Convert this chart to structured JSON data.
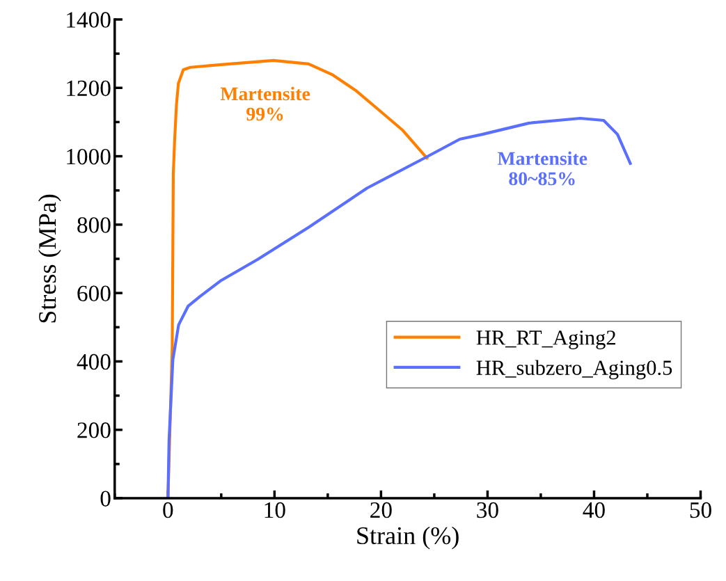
{
  "chart_data": {
    "type": "line",
    "xlabel": "Strain (%)",
    "ylabel": "Stress (MPa)",
    "xlim": [
      -5,
      50
    ],
    "xticks": [
      0,
      10,
      20,
      30,
      40,
      50
    ],
    "ylim": [
      0,
      1400
    ],
    "yticks": [
      0,
      200,
      400,
      600,
      800,
      1000,
      1200,
      1400
    ],
    "grid": false,
    "legend": "right",
    "line_style": "solid",
    "marker": "none",
    "series": [
      {
        "name": "HR_RT_Aging2",
        "color": "#ff8000",
        "x": [
          0,
          0.4,
          0.5,
          0.63,
          0.8,
          0.98,
          1.44,
          2.1,
          5,
          9.9,
          13.2,
          15.4,
          17.6,
          19.7,
          22.0,
          24.3
        ],
        "values": [
          0,
          440,
          948,
          1050,
          1152,
          1213,
          1253,
          1260,
          1268,
          1280,
          1270,
          1239,
          1193,
          1138,
          1077,
          995
        ]
      },
      {
        "name": "HR_subzero_Aging0.5",
        "color": "#5b6fff",
        "x": [
          0,
          0.1,
          0.46,
          1.0,
          1.9,
          3.0,
          5.0,
          8.4,
          13.2,
          18.7,
          24.1,
          27.4,
          29.5,
          33.9,
          38.7,
          40.9,
          42.2,
          43.4
        ],
        "values": [
          0,
          169,
          405,
          507,
          562,
          590,
          637,
          698,
          792,
          907,
          995,
          1050,
          1064,
          1097,
          1111,
          1105,
          1064,
          979
        ]
      }
    ],
    "annotations": [
      "Martensite\n99%",
      "Martensite\n80~85%"
    ]
  }
}
